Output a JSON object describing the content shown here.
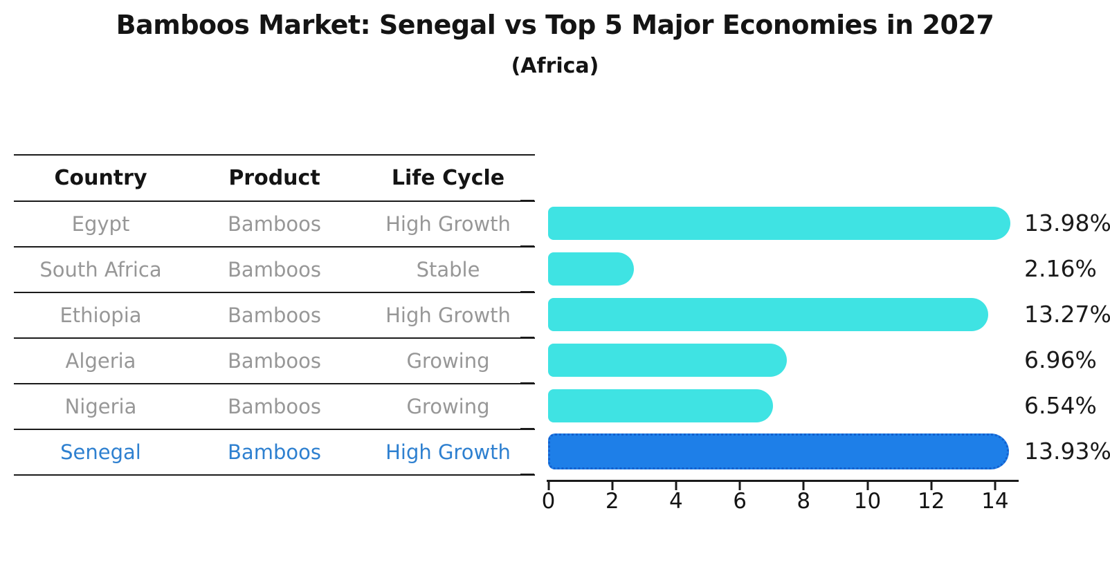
{
  "title": "Bamboos Market: Senegal vs Top 5 Major Economies in 2027",
  "subtitle": "(Africa)",
  "table": {
    "headers": [
      "Country",
      "Product",
      "Life Cycle"
    ],
    "rows": [
      {
        "country": "Egypt",
        "product": "Bamboos",
        "life_cycle": "High Growth",
        "highlighted": false
      },
      {
        "country": "South Africa",
        "product": "Bamboos",
        "life_cycle": "Stable",
        "highlighted": false
      },
      {
        "country": "Ethiopia",
        "product": "Bamboos",
        "life_cycle": "High Growth",
        "highlighted": false
      },
      {
        "country": "Algeria",
        "product": "Bamboos",
        "life_cycle": "Growing",
        "highlighted": false
      },
      {
        "country": "Nigeria",
        "product": "Bamboos",
        "life_cycle": "Growing",
        "highlighted": false
      },
      {
        "country": "Senegal",
        "product": "Bamboos",
        "life_cycle": "High Growth",
        "highlighted": true
      }
    ]
  },
  "chart_data": {
    "type": "bar",
    "orientation": "horizontal",
    "title": "Bamboos Market: Senegal vs Top 5 Major Economies in 2027 (Africa)",
    "categories": [
      "Egypt",
      "South Africa",
      "Ethiopia",
      "Algeria",
      "Nigeria",
      "Senegal"
    ],
    "values": [
      13.98,
      2.16,
      13.27,
      6.96,
      6.54,
      13.93
    ],
    "value_labels": [
      "13.98%",
      "2.16%",
      "13.27%",
      "6.96%",
      "6.54%",
      "13.93%"
    ],
    "unit": "%",
    "xticks": [
      "0",
      "2",
      "4",
      "6",
      "8",
      "10",
      "12",
      "14"
    ],
    "xlim": [
      0,
      14.8
    ],
    "grid": false,
    "legend": false,
    "highlighted_category": "Senegal"
  },
  "colors": {
    "bar_fill": "#3FE3E3",
    "bar_highlight_fill": "#1E7FE8",
    "bar_highlight_border": "#1360CE",
    "highlight_text": "#2E80D0",
    "table_text": "#979797",
    "line": "#1a1a1a"
  }
}
